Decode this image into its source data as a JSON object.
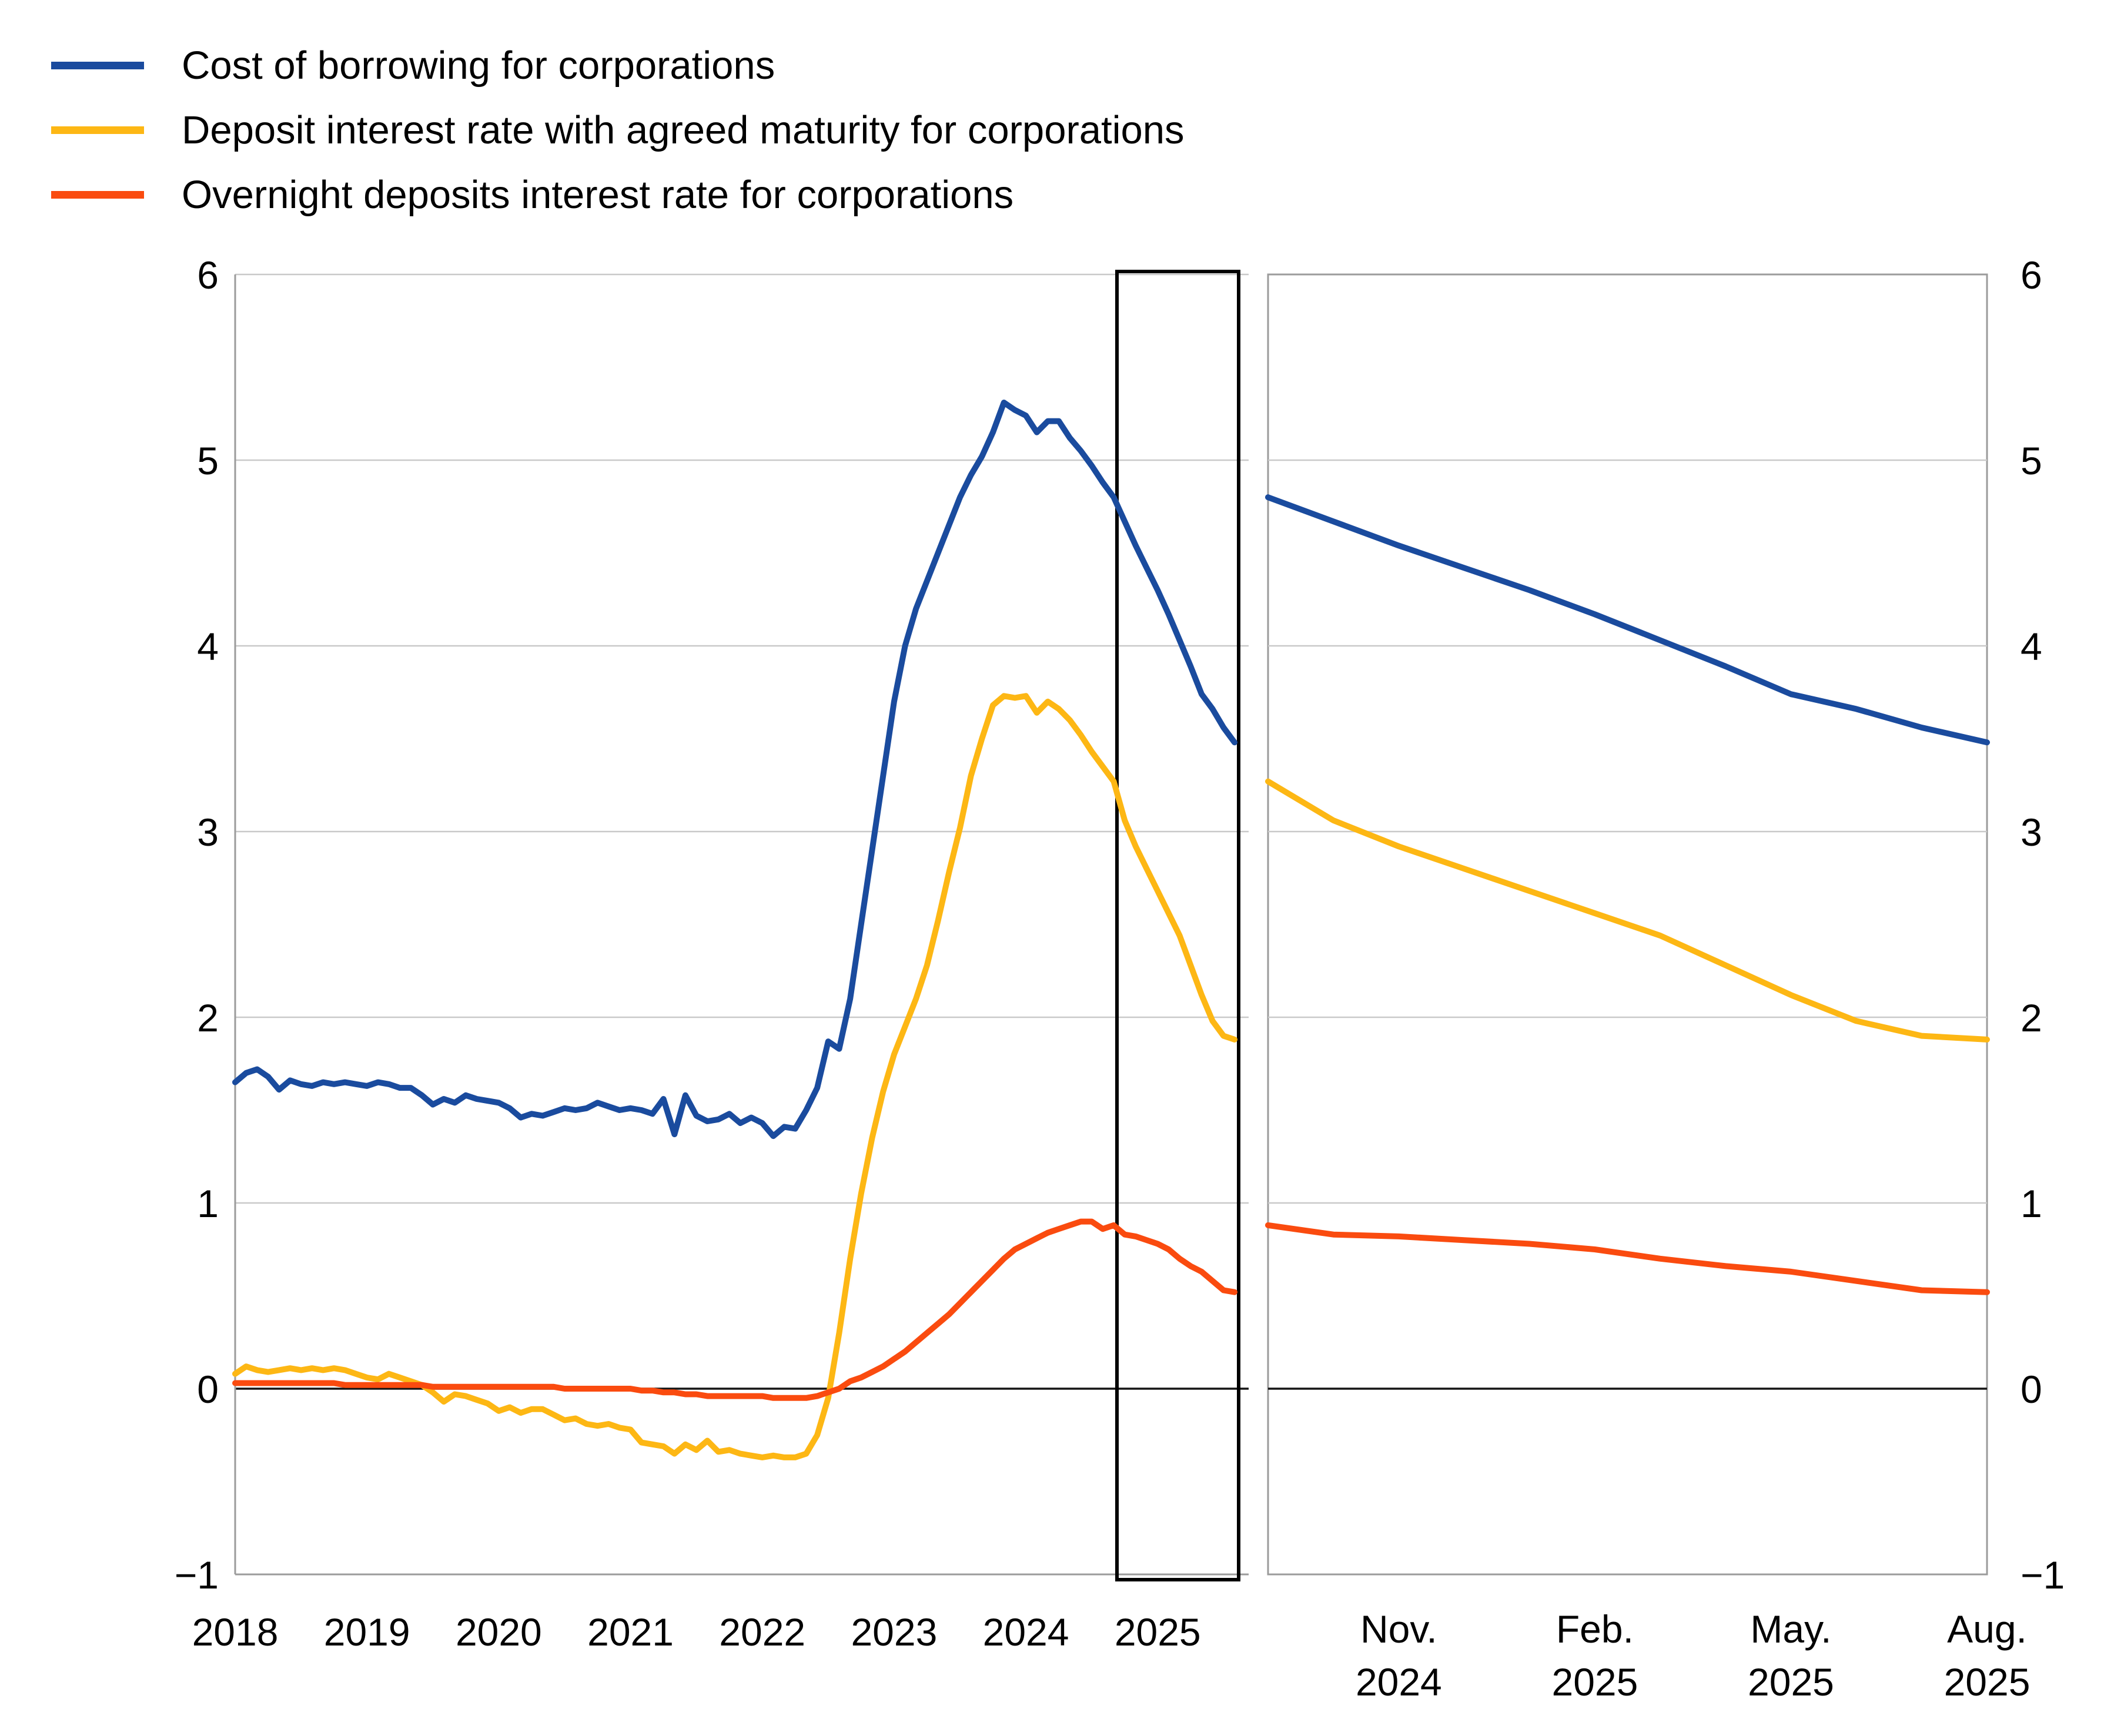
{
  "legend": {
    "items": [
      {
        "label": "Cost of borrowing for corporations",
        "color": "#1a4b9e"
      },
      {
        "label": "Deposit interest rate with agreed maturity for corporations",
        "color": "#fdb714"
      },
      {
        "label": "Overnight deposits interest rate for corporations",
        "color": "#fa4b0f"
      }
    ]
  },
  "chart_data": {
    "type": "line",
    "title": "",
    "grid": true,
    "background": "#ffffff",
    "grid_color": "#c9c9c9",
    "axis_color": "#9b9b9b",
    "zero_line_color": "#141414",
    "highlight_box_color": "#000000",
    "y_axis": {
      "min": -1,
      "max": 6,
      "tick_values": [
        6,
        5,
        4,
        3,
        2,
        1,
        0,
        -1
      ],
      "tick_labels": [
        "6",
        "5",
        "4",
        "3",
        "2",
        "1",
        "0",
        "−1"
      ],
      "labels_on_left": true,
      "labels_on_right": true
    },
    "panels": [
      {
        "id": "history",
        "x_start": "2018-01",
        "x_end": "2025-08",
        "x_tick_labels": [
          "2018",
          "2019",
          "2020",
          "2021",
          "2022",
          "2023",
          "2024",
          "2025"
        ],
        "x_tick_month_index": [
          0,
          12,
          24,
          36,
          48,
          60,
          72,
          84
        ],
        "highlight_box": {
          "start": "2024-09",
          "end": "2025-08"
        },
        "series": [
          {
            "id": "cost_of_borrowing",
            "legend_ref": 0,
            "values": [
              1.65,
              1.7,
              1.72,
              1.68,
              1.61,
              1.66,
              1.64,
              1.63,
              1.65,
              1.64,
              1.65,
              1.64,
              1.63,
              1.65,
              1.64,
              1.62,
              1.62,
              1.58,
              1.53,
              1.56,
              1.54,
              1.58,
              1.56,
              1.55,
              1.54,
              1.51,
              1.46,
              1.48,
              1.47,
              1.49,
              1.51,
              1.5,
              1.51,
              1.54,
              1.52,
              1.5,
              1.51,
              1.5,
              1.48,
              1.56,
              1.37,
              1.58,
              1.47,
              1.44,
              1.45,
              1.48,
              1.43,
              1.46,
              1.43,
              1.36,
              1.41,
              1.4,
              1.5,
              1.62,
              1.87,
              1.83,
              2.1,
              2.5,
              2.9,
              3.3,
              3.7,
              4.0,
              4.2,
              4.35,
              4.5,
              4.65,
              4.8,
              4.92,
              5.02,
              5.15,
              5.31,
              5.27,
              5.24,
              5.15,
              5.21,
              5.21,
              5.12,
              5.05,
              4.97,
              4.88,
              4.8,
              4.67,
              4.54,
              4.42,
              4.3,
              4.17,
              4.03,
              3.89,
              3.74,
              3.66,
              3.56,
              3.48
            ]
          },
          {
            "id": "deposit_agreed_maturity",
            "legend_ref": 1,
            "values": [
              0.08,
              0.12,
              0.1,
              0.09,
              0.1,
              0.11,
              0.1,
              0.11,
              0.1,
              0.11,
              0.1,
              0.08,
              0.06,
              0.05,
              0.08,
              0.06,
              0.04,
              0.02,
              -0.02,
              -0.07,
              -0.03,
              -0.04,
              -0.06,
              -0.08,
              -0.12,
              -0.1,
              -0.13,
              -0.11,
              -0.11,
              -0.14,
              -0.17,
              -0.16,
              -0.19,
              -0.2,
              -0.19,
              -0.21,
              -0.22,
              -0.29,
              -0.3,
              -0.31,
              -0.35,
              -0.3,
              -0.33,
              -0.28,
              -0.34,
              -0.33,
              -0.35,
              -0.36,
              -0.37,
              -0.36,
              -0.37,
              -0.37,
              -0.35,
              -0.25,
              -0.05,
              0.3,
              0.7,
              1.05,
              1.35,
              1.6,
              1.8,
              1.95,
              2.1,
              2.28,
              2.52,
              2.78,
              3.02,
              3.3,
              3.5,
              3.68,
              3.73,
              3.72,
              3.73,
              3.64,
              3.7,
              3.66,
              3.6,
              3.52,
              3.43,
              3.35,
              3.27,
              3.06,
              2.92,
              2.8,
              2.68,
              2.56,
              2.44,
              2.28,
              2.12,
              1.98,
              1.9,
              1.88
            ]
          },
          {
            "id": "overnight_deposits",
            "legend_ref": 2,
            "values": [
              0.03,
              0.03,
              0.03,
              0.03,
              0.03,
              0.03,
              0.03,
              0.03,
              0.03,
              0.03,
              0.02,
              0.02,
              0.02,
              0.02,
              0.02,
              0.02,
              0.02,
              0.02,
              0.01,
              0.01,
              0.01,
              0.01,
              0.01,
              0.01,
              0.01,
              0.01,
              0.01,
              0.01,
              0.01,
              0.01,
              0.0,
              0.0,
              0.0,
              0.0,
              0.0,
              0.0,
              0.0,
              -0.01,
              -0.01,
              -0.02,
              -0.02,
              -0.03,
              -0.03,
              -0.04,
              -0.04,
              -0.04,
              -0.04,
              -0.04,
              -0.04,
              -0.05,
              -0.05,
              -0.05,
              -0.05,
              -0.04,
              -0.02,
              0.0,
              0.04,
              0.06,
              0.09,
              0.12,
              0.16,
              0.2,
              0.25,
              0.3,
              0.35,
              0.4,
              0.46,
              0.52,
              0.58,
              0.64,
              0.7,
              0.75,
              0.78,
              0.81,
              0.84,
              0.86,
              0.88,
              0.9,
              0.9,
              0.86,
              0.88,
              0.83,
              0.82,
              0.8,
              0.78,
              0.75,
              0.7,
              0.66,
              0.63,
              0.58,
              0.53,
              0.52
            ]
          }
        ]
      },
      {
        "id": "zoom",
        "x_start": "2024-09",
        "x_end": "2025-08",
        "x_tick_labels": [
          [
            "Nov.",
            "2024"
          ],
          [
            "Feb.",
            "2025"
          ],
          [
            "May.",
            "2025"
          ],
          [
            "Aug.",
            "2025"
          ]
        ],
        "x_tick_month_index": [
          2,
          5,
          8,
          11
        ],
        "series": [
          {
            "id": "cost_of_borrowing",
            "legend_ref": 0,
            "values": [
              4.8,
              4.67,
              4.54,
              4.42,
              4.3,
              4.17,
              4.03,
              3.89,
              3.74,
              3.66,
              3.56,
              3.48
            ]
          },
          {
            "id": "deposit_agreed_maturity",
            "legend_ref": 1,
            "values": [
              3.27,
              3.06,
              2.92,
              2.8,
              2.68,
              2.56,
              2.44,
              2.28,
              2.12,
              1.98,
              1.9,
              1.88
            ]
          },
          {
            "id": "overnight_deposits",
            "legend_ref": 2,
            "values": [
              0.88,
              0.83,
              0.82,
              0.8,
              0.78,
              0.75,
              0.7,
              0.66,
              0.63,
              0.58,
              0.53,
              0.52
            ]
          }
        ]
      }
    ]
  }
}
